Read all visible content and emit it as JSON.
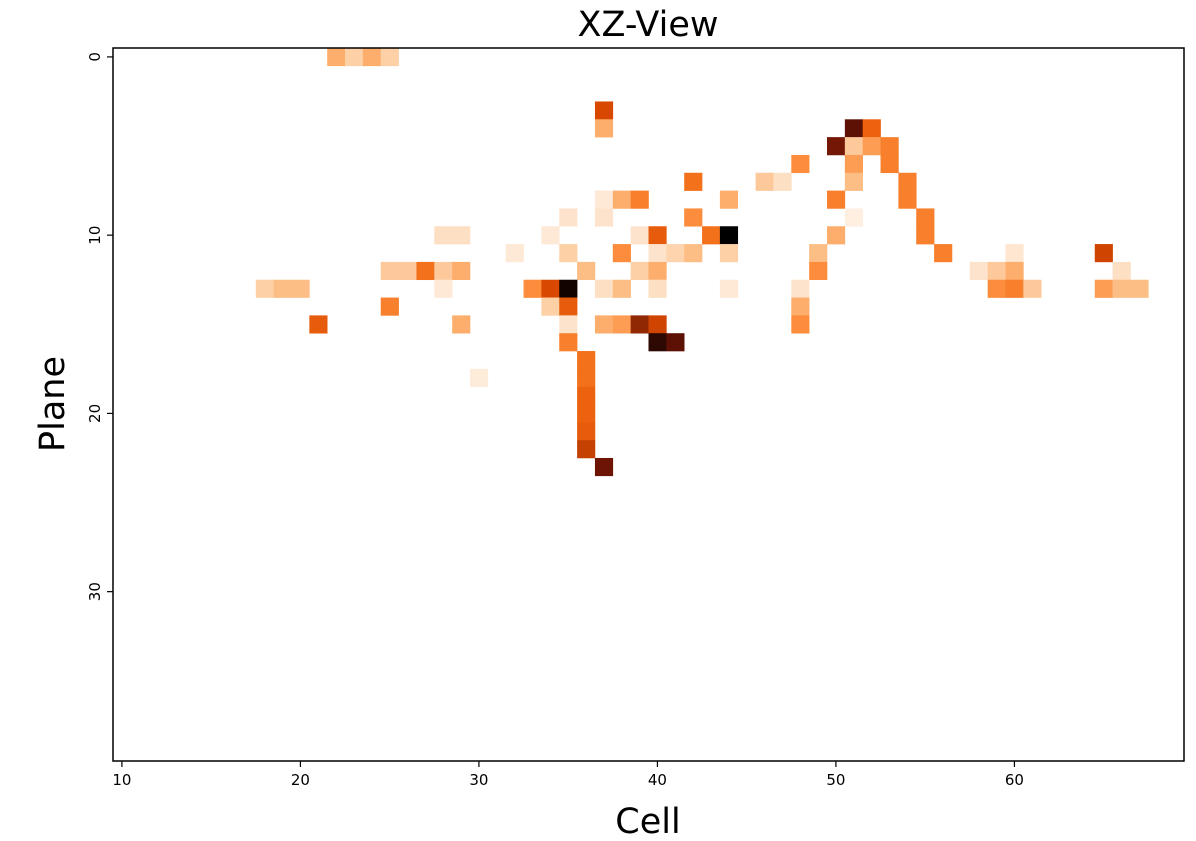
{
  "chart_data": {
    "type": "heatmap",
    "title": "XZ-View",
    "xlabel": "Cell",
    "ylabel": "Plane",
    "xlim": [
      9.5,
      69.5
    ],
    "ylim": [
      39.5,
      -0.5
    ],
    "y_inverted": true,
    "xticks": [
      10,
      20,
      30,
      40,
      50,
      60
    ],
    "yticks": [
      0,
      10,
      20,
      30
    ],
    "colormap": "Oranges-to-black",
    "cell_size": 1,
    "value_scale": [
      0,
      1
    ],
    "cells": [
      {
        "x": 22,
        "y": 0,
        "v": 0.35
      },
      {
        "x": 23,
        "y": 0,
        "v": 0.22
      },
      {
        "x": 24,
        "y": 0,
        "v": 0.35
      },
      {
        "x": 25,
        "y": 0,
        "v": 0.22
      },
      {
        "x": 37,
        "y": 3,
        "v": 0.68
      },
      {
        "x": 37,
        "y": 4,
        "v": 0.35
      },
      {
        "x": 51,
        "y": 4,
        "v": 0.9
      },
      {
        "x": 52,
        "y": 4,
        "v": 0.6
      },
      {
        "x": 50,
        "y": 5,
        "v": 0.87
      },
      {
        "x": 51,
        "y": 5,
        "v": 0.25
      },
      {
        "x": 52,
        "y": 5,
        "v": 0.4
      },
      {
        "x": 53,
        "y": 5,
        "v": 0.5
      },
      {
        "x": 48,
        "y": 6,
        "v": 0.45
      },
      {
        "x": 51,
        "y": 6,
        "v": 0.4
      },
      {
        "x": 53,
        "y": 6,
        "v": 0.5
      },
      {
        "x": 42,
        "y": 7,
        "v": 0.55
      },
      {
        "x": 46,
        "y": 7,
        "v": 0.25
      },
      {
        "x": 47,
        "y": 7,
        "v": 0.15
      },
      {
        "x": 51,
        "y": 7,
        "v": 0.3
      },
      {
        "x": 54,
        "y": 7,
        "v": 0.5
      },
      {
        "x": 37,
        "y": 8,
        "v": 0.08
      },
      {
        "x": 38,
        "y": 8,
        "v": 0.35
      },
      {
        "x": 39,
        "y": 8,
        "v": 0.5
      },
      {
        "x": 44,
        "y": 8,
        "v": 0.35
      },
      {
        "x": 50,
        "y": 8,
        "v": 0.5
      },
      {
        "x": 54,
        "y": 8,
        "v": 0.5
      },
      {
        "x": 35,
        "y": 9,
        "v": 0.12
      },
      {
        "x": 37,
        "y": 9,
        "v": 0.12
      },
      {
        "x": 42,
        "y": 9,
        "v": 0.45
      },
      {
        "x": 51,
        "y": 9,
        "v": 0.04
      },
      {
        "x": 55,
        "y": 9,
        "v": 0.5
      },
      {
        "x": 28,
        "y": 10,
        "v": 0.15
      },
      {
        "x": 29,
        "y": 10,
        "v": 0.15
      },
      {
        "x": 34,
        "y": 10,
        "v": 0.08
      },
      {
        "x": 39,
        "y": 10,
        "v": 0.12
      },
      {
        "x": 40,
        "y": 10,
        "v": 0.62
      },
      {
        "x": 43,
        "y": 10,
        "v": 0.55
      },
      {
        "x": 44,
        "y": 10,
        "v": 1.0
      },
      {
        "x": 50,
        "y": 10,
        "v": 0.35
      },
      {
        "x": 55,
        "y": 10,
        "v": 0.5
      },
      {
        "x": 32,
        "y": 11,
        "v": 0.08
      },
      {
        "x": 35,
        "y": 11,
        "v": 0.22
      },
      {
        "x": 38,
        "y": 11,
        "v": 0.45
      },
      {
        "x": 40,
        "y": 11,
        "v": 0.12
      },
      {
        "x": 41,
        "y": 11,
        "v": 0.2
      },
      {
        "x": 42,
        "y": 11,
        "v": 0.3
      },
      {
        "x": 44,
        "y": 11,
        "v": 0.22
      },
      {
        "x": 49,
        "y": 11,
        "v": 0.3
      },
      {
        "x": 56,
        "y": 11,
        "v": 0.5
      },
      {
        "x": 60,
        "y": 11,
        "v": 0.1
      },
      {
        "x": 65,
        "y": 11,
        "v": 0.7
      },
      {
        "x": 25,
        "y": 12,
        "v": 0.25
      },
      {
        "x": 26,
        "y": 12,
        "v": 0.25
      },
      {
        "x": 27,
        "y": 12,
        "v": 0.55
      },
      {
        "x": 28,
        "y": 12,
        "v": 0.25
      },
      {
        "x": 29,
        "y": 12,
        "v": 0.35
      },
      {
        "x": 36,
        "y": 12,
        "v": 0.3
      },
      {
        "x": 39,
        "y": 12,
        "v": 0.22
      },
      {
        "x": 40,
        "y": 12,
        "v": 0.35
      },
      {
        "x": 49,
        "y": 12,
        "v": 0.45
      },
      {
        "x": 58,
        "y": 12,
        "v": 0.12
      },
      {
        "x": 59,
        "y": 12,
        "v": 0.25
      },
      {
        "x": 60,
        "y": 12,
        "v": 0.35
      },
      {
        "x": 66,
        "y": 12,
        "v": 0.15
      },
      {
        "x": 18,
        "y": 13,
        "v": 0.22
      },
      {
        "x": 19,
        "y": 13,
        "v": 0.3
      },
      {
        "x": 20,
        "y": 13,
        "v": 0.3
      },
      {
        "x": 28,
        "y": 13,
        "v": 0.08
      },
      {
        "x": 33,
        "y": 13,
        "v": 0.45
      },
      {
        "x": 34,
        "y": 13,
        "v": 0.68
      },
      {
        "x": 35,
        "y": 13,
        "v": 0.98
      },
      {
        "x": 37,
        "y": 13,
        "v": 0.15
      },
      {
        "x": 38,
        "y": 13,
        "v": 0.3
      },
      {
        "x": 40,
        "y": 13,
        "v": 0.15
      },
      {
        "x": 44,
        "y": 13,
        "v": 0.08
      },
      {
        "x": 48,
        "y": 13,
        "v": 0.12
      },
      {
        "x": 59,
        "y": 13,
        "v": 0.45
      },
      {
        "x": 60,
        "y": 13,
        "v": 0.5
      },
      {
        "x": 61,
        "y": 13,
        "v": 0.25
      },
      {
        "x": 65,
        "y": 13,
        "v": 0.4
      },
      {
        "x": 66,
        "y": 13,
        "v": 0.3
      },
      {
        "x": 67,
        "y": 13,
        "v": 0.3
      },
      {
        "x": 25,
        "y": 14,
        "v": 0.5
      },
      {
        "x": 34,
        "y": 14,
        "v": 0.22
      },
      {
        "x": 35,
        "y": 14,
        "v": 0.62
      },
      {
        "x": 48,
        "y": 14,
        "v": 0.35
      },
      {
        "x": 21,
        "y": 15,
        "v": 0.62
      },
      {
        "x": 29,
        "y": 15,
        "v": 0.35
      },
      {
        "x": 35,
        "y": 15,
        "v": 0.12
      },
      {
        "x": 37,
        "y": 15,
        "v": 0.35
      },
      {
        "x": 38,
        "y": 15,
        "v": 0.4
      },
      {
        "x": 39,
        "y": 15,
        "v": 0.82
      },
      {
        "x": 40,
        "y": 15,
        "v": 0.7
      },
      {
        "x": 48,
        "y": 15,
        "v": 0.45
      },
      {
        "x": 35,
        "y": 16,
        "v": 0.5
      },
      {
        "x": 40,
        "y": 16,
        "v": 0.95
      },
      {
        "x": 41,
        "y": 16,
        "v": 0.9
      },
      {
        "x": 36,
        "y": 17,
        "v": 0.55
      },
      {
        "x": 30,
        "y": 18,
        "v": 0.06
      },
      {
        "x": 36,
        "y": 18,
        "v": 0.55
      },
      {
        "x": 36,
        "y": 19,
        "v": 0.6
      },
      {
        "x": 36,
        "y": 20,
        "v": 0.6
      },
      {
        "x": 36,
        "y": 21,
        "v": 0.62
      },
      {
        "x": 36,
        "y": 22,
        "v": 0.72
      },
      {
        "x": 37,
        "y": 23,
        "v": 0.88
      }
    ]
  }
}
